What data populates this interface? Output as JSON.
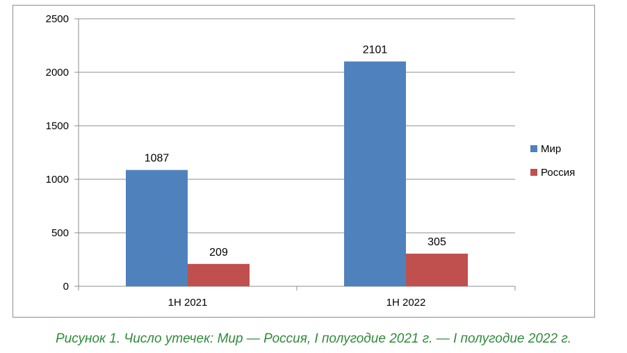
{
  "chart_data": {
    "type": "bar",
    "categories": [
      "1H 2021",
      "1H 2022"
    ],
    "series": [
      {
        "name": "Мир",
        "values": [
          1087,
          2101
        ],
        "color": "#4f81bd"
      },
      {
        "name": "Россия",
        "values": [
          209,
          305
        ],
        "color": "#c0504d"
      }
    ],
    "ylim": [
      0,
      2500
    ],
    "yticks": [
      0,
      500,
      1000,
      1500,
      2000,
      2500
    ],
    "grid": true,
    "legend_position": "right",
    "data_labels": true
  },
  "caption": "Рисунок 1. Число утечек: Мир — Россия, I полугодие 2021 г. — I полугодие 2022 г."
}
